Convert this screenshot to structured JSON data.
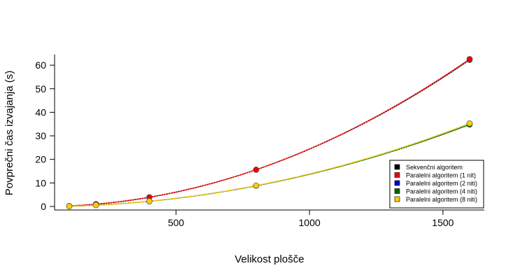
{
  "chart_data": {
    "type": "scatter",
    "title": "",
    "xlabel": "Velikost plošče",
    "ylabel": "Povprečni čas izvajanja (s)",
    "xlim": [
      45,
      1655
    ],
    "ylim": [
      -1.5,
      64.5
    ],
    "x_ticks": [
      500,
      1000,
      1500
    ],
    "y_ticks": [
      0,
      10,
      20,
      30,
      40,
      50,
      60
    ],
    "grid": false,
    "legend_position": "bottom-right",
    "trend": "quadratic dotted fit per series",
    "series": [
      {
        "name": "Sekvenčni algoritem",
        "color": "#000000",
        "x": [
          100,
          200,
          400,
          800,
          1600
        ],
        "y": [
          0.2,
          1.0,
          3.9,
          15.6,
          62.3
        ]
      },
      {
        "name": "Paralelni algoritem (1 nit)",
        "color": "#ee0000",
        "x": [
          100,
          200,
          400,
          800,
          1600
        ],
        "y": [
          0.2,
          1.0,
          3.9,
          15.6,
          62.6
        ]
      },
      {
        "name": "Paralelni algoritem (2 niti)",
        "color": "#0000cc",
        "x": [
          100,
          200,
          400,
          800,
          1600
        ],
        "y": [
          0.1,
          0.6,
          2.2,
          8.8,
          35.1
        ]
      },
      {
        "name": "Paralelni algoritem (4 niti)",
        "color": "#006600",
        "x": [
          100,
          200,
          400,
          800,
          1600
        ],
        "y": [
          0.1,
          0.6,
          2.2,
          8.8,
          34.8
        ]
      },
      {
        "name": "Paralelni algoritem (8 niti)",
        "color": "#ffcc00",
        "x": [
          100,
          200,
          400,
          800,
          1600
        ],
        "y": [
          0.1,
          0.6,
          2.2,
          8.9,
          35.3
        ]
      }
    ]
  }
}
